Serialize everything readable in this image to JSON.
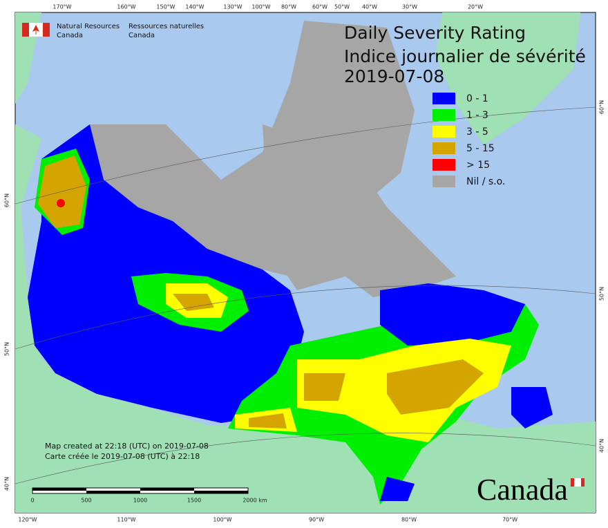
{
  "map": {
    "title": [
      "Daily Severity Rating",
      "Indice journalier de sévérité",
      "2019-07-08"
    ],
    "agency": {
      "en": [
        "Natural Resources",
        "Canada"
      ],
      "fr": [
        "Ressources naturelles",
        "Canada"
      ]
    },
    "legend": [
      {
        "label": "0 - 1",
        "color": "#0000ff"
      },
      {
        "label": "1 - 3",
        "color": "#00ee00"
      },
      {
        "label": "3 - 5",
        "color": "#ffff00"
      },
      {
        "label": "5 - 15",
        "color": "#d4a500"
      },
      {
        "label": "> 15",
        "color": "#ff0000"
      },
      {
        "label": "Nil / s.o.",
        "color": "#a6a6a6"
      }
    ],
    "top_labels": [
      "170°W",
      "160°W",
      "150°W",
      "140°W",
      "130°W",
      "100°W",
      "80°W",
      "60°W",
      "50°W",
      "40°W",
      "30°W",
      "20°W"
    ],
    "bottom_labels": [
      "120°W",
      "110°W",
      "100°W",
      "90°W",
      "80°W",
      "70°W"
    ],
    "left_labels": [
      "60°N",
      "50°N",
      "40°N"
    ],
    "right_labels": [
      "60°N",
      "50°N",
      "40°N"
    ],
    "scale_labels": [
      "0",
      "500",
      "1000",
      "1500",
      "2000 km"
    ],
    "notes": [
      "Map created at 22:18 (UTC) on 2019-07-08",
      "Carte créée le 2019-07-08 (UTC) à 22:18"
    ],
    "wordmark": "Canada"
  }
}
